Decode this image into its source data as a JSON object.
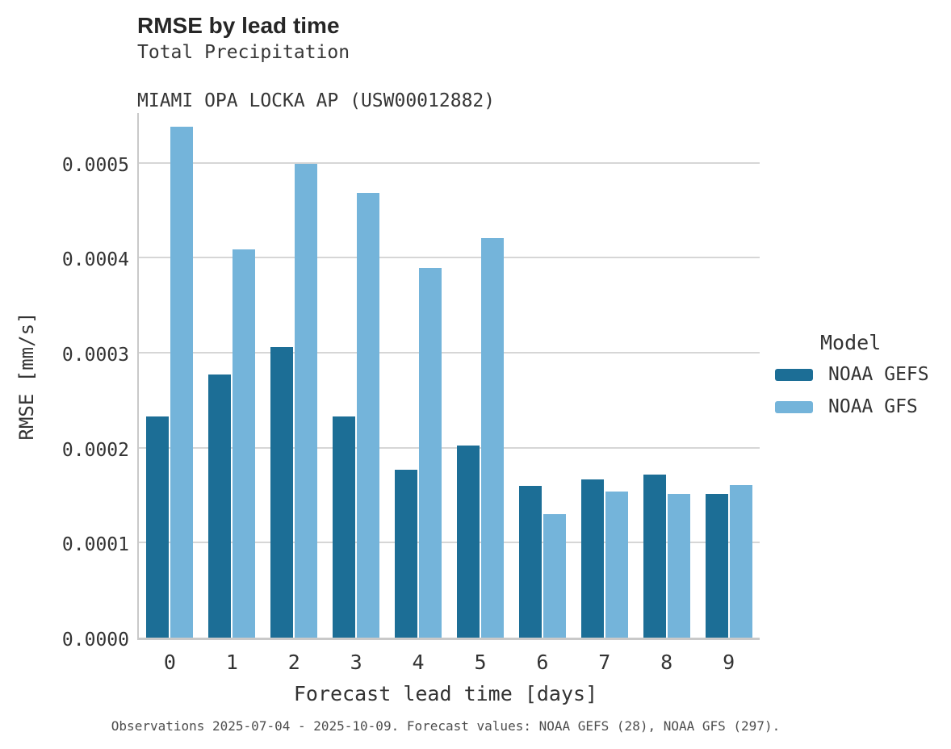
{
  "header": {
    "title": "RMSE by lead time",
    "subtitle_line1": "Total Precipitation",
    "subtitle_line2": "MIAMI OPA LOCKA AP (USW00012882)"
  },
  "chart_data": {
    "type": "bar",
    "grouped": true,
    "title": "RMSE by lead time",
    "subtitle": [
      "Total Precipitation",
      "MIAMI OPA LOCKA AP (USW00012882)"
    ],
    "xlabel": "Forecast lead time [days]",
    "ylabel": "RMSE [mm/s]",
    "categories": [
      "0",
      "1",
      "2",
      "3",
      "4",
      "5",
      "6",
      "7",
      "8",
      "9"
    ],
    "series": [
      {
        "name": "NOAA GEFS",
        "color": "#1c6e96",
        "values": [
          0.000233,
          0.000277,
          0.000306,
          0.000233,
          0.000177,
          0.000202,
          0.00016,
          0.000167,
          0.000172,
          0.000151
        ]
      },
      {
        "name": "NOAA GFS",
        "color": "#74b4da",
        "values": [
          0.000538,
          0.000409,
          0.000499,
          0.000468,
          0.000389,
          0.000421,
          0.00013,
          0.000154,
          0.000151,
          0.000161
        ]
      }
    ],
    "ylim": [
      0,
      0.000555
    ],
    "yticks": [
      {
        "value": 0.0,
        "label": "0.0000"
      },
      {
        "value": 0.0001,
        "label": "0.0001"
      },
      {
        "value": 0.0002,
        "label": "0.0002"
      },
      {
        "value": 0.0003,
        "label": "0.0003"
      },
      {
        "value": 0.0004,
        "label": "0.0004"
      },
      {
        "value": 0.0005,
        "label": "0.0005"
      }
    ],
    "grid": "horizontal",
    "legend_title": "Model",
    "legend_position": "right"
  },
  "legend": {
    "title": "Model"
  },
  "footer": {
    "text": "Observations 2025-07-04 - 2025-10-09. Forecast values: NOAA GEFS (28), NOAA GFS (297)."
  },
  "colors": {
    "noaa_gefs": "#1c6e96",
    "noaa_gfs": "#74b4da",
    "gridline": "#d6d6d6",
    "axis_spine": "#c9c9c9",
    "title_text": "#262626",
    "tick_text": "#333333",
    "footer_text": "#4d4d4d",
    "background": "#ffffff"
  }
}
